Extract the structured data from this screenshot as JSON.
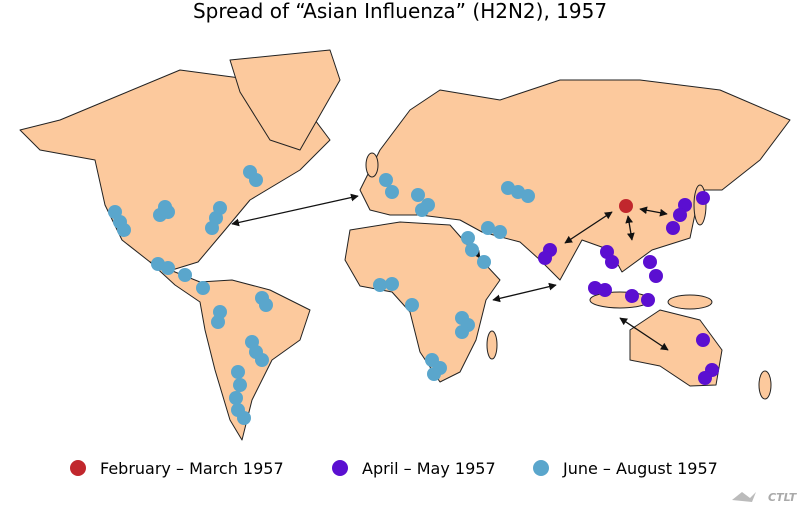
{
  "title": "Spread of “Asian Influenza” (H2N2), 1957",
  "legend": [
    {
      "label": "February – March 1957",
      "color": "#c1272d"
    },
    {
      "label": "April – May 1957",
      "color": "#5b0fd1"
    },
    {
      "label": "June – August 1957",
      "color": "#5aa6cc"
    }
  ],
  "logo": "CTLT"
}
